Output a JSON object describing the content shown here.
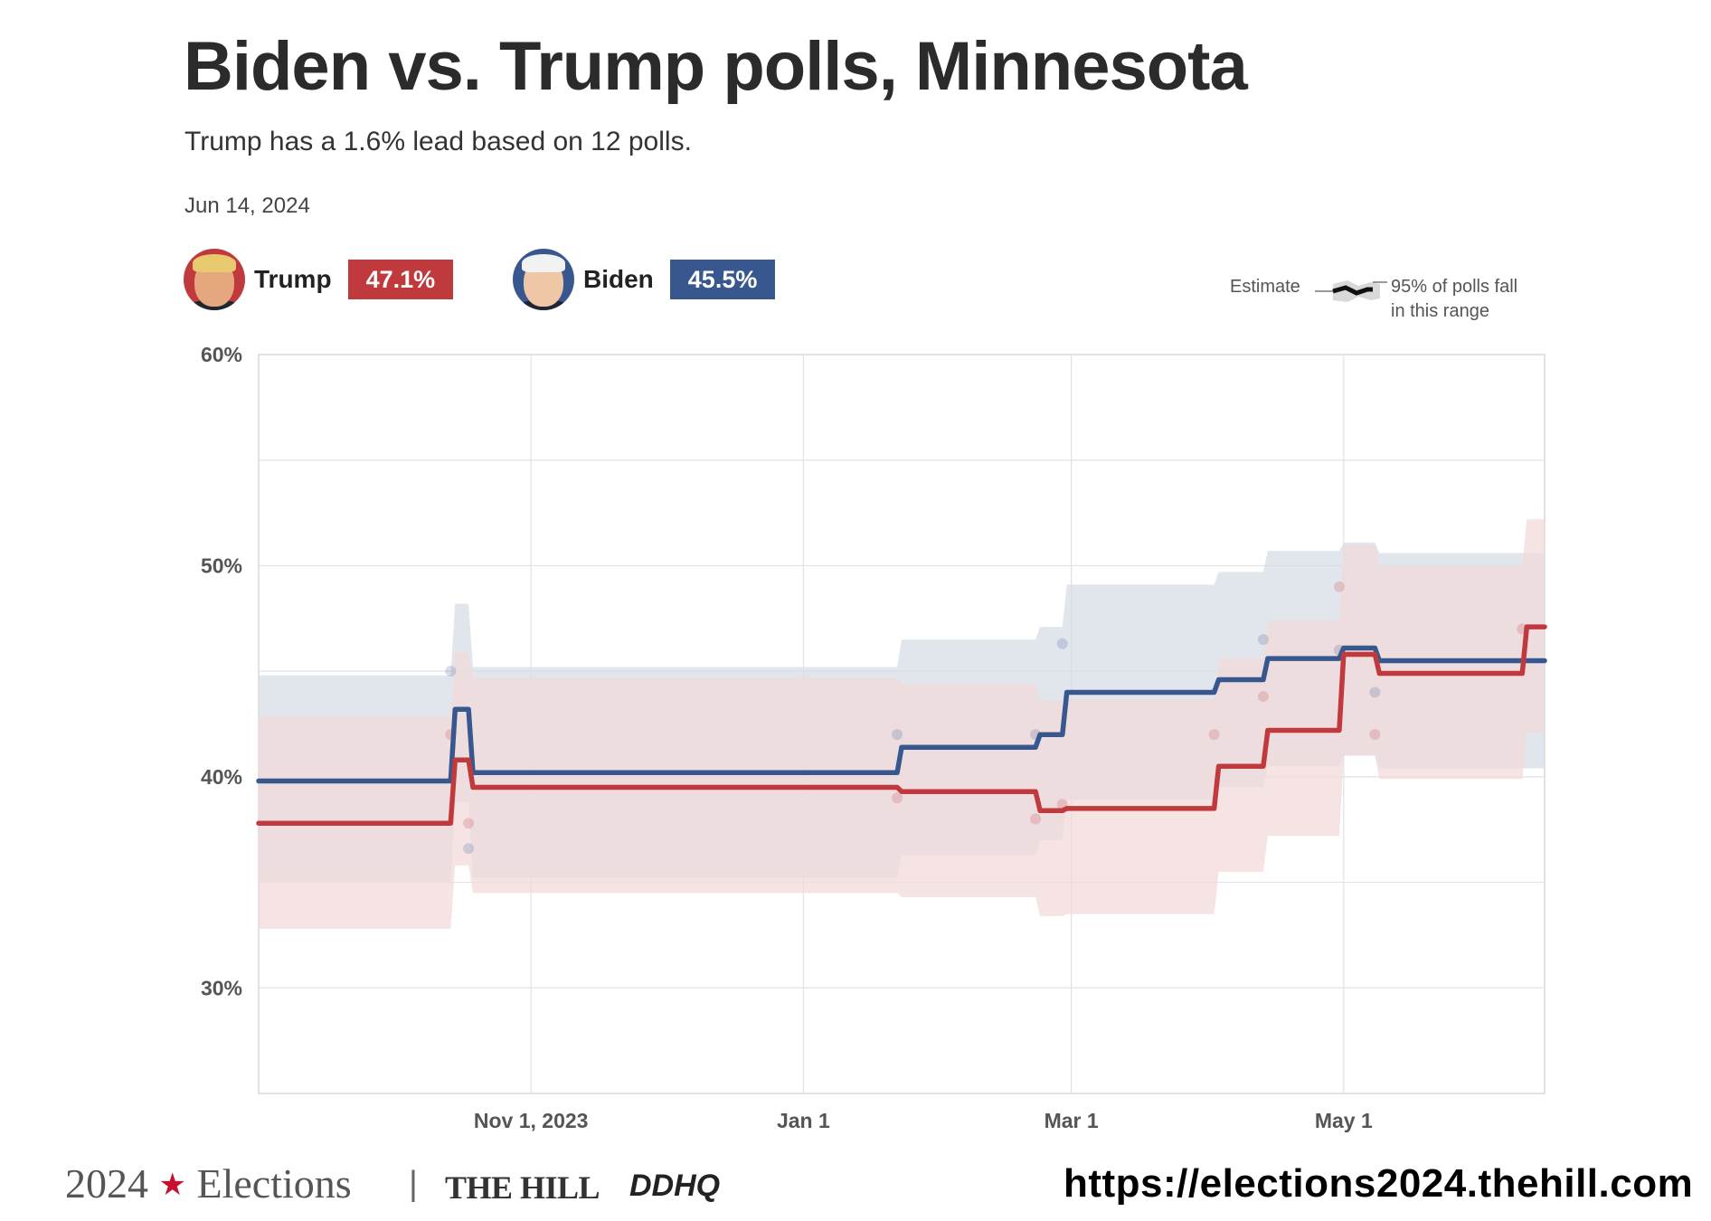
{
  "header": {
    "title": "Biden vs. Trump polls, Minnesota",
    "subtitle": "Trump has a 1.6% lead based on 12 polls.",
    "date": "Jun 14, 2024"
  },
  "candidates": {
    "trump": {
      "name": "Trump",
      "value": "47.1%",
      "color": "#c0393d",
      "avatar_icon": "trump-portrait-icon"
    },
    "biden": {
      "name": "Biden",
      "value": "45.5%",
      "color": "#38578f",
      "avatar_icon": "biden-portrait-icon"
    }
  },
  "legend": {
    "estimate": "Estimate",
    "range_line1": "95% of polls fall",
    "range_line2": "in this range"
  },
  "footer": {
    "brand_year": "2024",
    "brand_word": "Elections",
    "separator": "|",
    "publisher": "THE HILL",
    "partner": "DDHQ",
    "url": "https://elections2024.thehill.com"
  },
  "chart_data": {
    "type": "line",
    "title": "Biden vs. Trump polls, Minnesota",
    "xlabel": "",
    "ylabel": "",
    "ylim": [
      25,
      60
    ],
    "y_ticks": [
      {
        "value": 60,
        "label": "60%"
      },
      {
        "value": 50,
        "label": "50%"
      },
      {
        "value": 40,
        "label": "40%"
      },
      {
        "value": 30,
        "label": "30%"
      }
    ],
    "xlim": [
      "2023-09-01",
      "2024-06-15"
    ],
    "x_ticks": [
      {
        "date": "2023-11-01",
        "label": "Nov 1, 2023"
      },
      {
        "date": "2024-01-01",
        "label": "Jan 1"
      },
      {
        "date": "2024-03-01",
        "label": "Mar 1"
      },
      {
        "date": "2024-05-01",
        "label": "May 1"
      }
    ],
    "grid": true,
    "legend_position": "top-right",
    "series": [
      {
        "name": "Biden",
        "color": "#38578f",
        "band_color": "#d6dce6",
        "estimate": [
          [
            "2023-09-01",
            39.8
          ],
          [
            "2023-10-14",
            39.8
          ],
          [
            "2023-10-15",
            43.2
          ],
          [
            "2023-10-18",
            43.2
          ],
          [
            "2023-10-19",
            40.2
          ],
          [
            "2024-01-22",
            40.2
          ],
          [
            "2024-01-23",
            41.4
          ],
          [
            "2024-02-22",
            41.4
          ],
          [
            "2024-02-23",
            42.0
          ],
          [
            "2024-02-28",
            42.0
          ],
          [
            "2024-02-29",
            44.0
          ],
          [
            "2024-04-02",
            44.0
          ],
          [
            "2024-04-03",
            44.6
          ],
          [
            "2024-04-13",
            44.6
          ],
          [
            "2024-04-14",
            45.6
          ],
          [
            "2024-04-30",
            45.6
          ],
          [
            "2024-05-01",
            46.1
          ],
          [
            "2024-05-08",
            46.1
          ],
          [
            "2024-05-09",
            45.5
          ],
          [
            "2024-06-15",
            45.5
          ]
        ],
        "band": [
          [
            "2023-09-01",
            35.0,
            44.8
          ],
          [
            "2023-10-14",
            35.0,
            44.8
          ],
          [
            "2023-10-15",
            38.8,
            48.2
          ],
          [
            "2023-10-18",
            38.8,
            48.2
          ],
          [
            "2023-10-19",
            35.2,
            45.2
          ],
          [
            "2024-01-22",
            35.2,
            45.2
          ],
          [
            "2024-01-23",
            36.3,
            46.5
          ],
          [
            "2024-02-22",
            36.3,
            46.5
          ],
          [
            "2024-02-23",
            37.0,
            47.1
          ],
          [
            "2024-02-28",
            37.0,
            47.1
          ],
          [
            "2024-02-29",
            38.9,
            49.1
          ],
          [
            "2024-04-02",
            38.9,
            49.1
          ],
          [
            "2024-04-03",
            39.5,
            49.7
          ],
          [
            "2024-04-13",
            39.5,
            49.7
          ],
          [
            "2024-04-14",
            40.5,
            50.7
          ],
          [
            "2024-04-30",
            40.5,
            50.7
          ],
          [
            "2024-05-01",
            41.0,
            51.1
          ],
          [
            "2024-05-08",
            41.0,
            51.1
          ],
          [
            "2024-05-09",
            40.4,
            50.6
          ],
          [
            "2024-06-15",
            40.4,
            50.6
          ]
        ],
        "polls": [
          [
            "2023-10-14",
            45.0
          ],
          [
            "2023-10-18",
            36.6
          ],
          [
            "2024-01-22",
            42.0
          ],
          [
            "2024-02-22",
            42.0
          ],
          [
            "2024-02-28",
            46.3
          ],
          [
            "2024-04-13",
            46.5
          ],
          [
            "2024-04-30",
            46.0
          ],
          [
            "2024-05-08",
            44.0
          ]
        ]
      },
      {
        "name": "Trump",
        "color": "#c0393d",
        "band_color": "#f3d9da",
        "estimate": [
          [
            "2023-09-01",
            37.8
          ],
          [
            "2023-10-14",
            37.8
          ],
          [
            "2023-10-15",
            40.8
          ],
          [
            "2023-10-18",
            40.8
          ],
          [
            "2023-10-19",
            39.5
          ],
          [
            "2024-01-22",
            39.5
          ],
          [
            "2024-01-23",
            39.3
          ],
          [
            "2024-02-22",
            39.3
          ],
          [
            "2024-02-23",
            38.4
          ],
          [
            "2024-02-28",
            38.4
          ],
          [
            "2024-02-29",
            38.5
          ],
          [
            "2024-04-02",
            38.5
          ],
          [
            "2024-04-03",
            40.5
          ],
          [
            "2024-04-13",
            40.5
          ],
          [
            "2024-04-14",
            42.2
          ],
          [
            "2024-04-30",
            42.2
          ],
          [
            "2024-05-01",
            45.8
          ],
          [
            "2024-05-08",
            45.8
          ],
          [
            "2024-05-09",
            44.9
          ],
          [
            "2024-06-10",
            44.9
          ],
          [
            "2024-06-11",
            47.1
          ],
          [
            "2024-06-15",
            47.1
          ]
        ],
        "band": [
          [
            "2023-09-01",
            32.8,
            42.9
          ],
          [
            "2023-10-14",
            32.8,
            42.9
          ],
          [
            "2023-10-15",
            35.8,
            45.9
          ],
          [
            "2023-10-18",
            35.8,
            45.9
          ],
          [
            "2023-10-19",
            34.5,
            44.7
          ],
          [
            "2024-01-22",
            34.5,
            44.7
          ],
          [
            "2024-01-23",
            34.3,
            44.4
          ],
          [
            "2024-02-22",
            34.3,
            44.4
          ],
          [
            "2024-02-23",
            33.4,
            43.6
          ],
          [
            "2024-02-28",
            33.4,
            43.6
          ],
          [
            "2024-02-29",
            33.5,
            43.7
          ],
          [
            "2024-04-02",
            33.5,
            43.7
          ],
          [
            "2024-04-03",
            35.5,
            45.6
          ],
          [
            "2024-04-13",
            35.5,
            45.6
          ],
          [
            "2024-04-14",
            37.2,
            47.4
          ],
          [
            "2024-04-30",
            37.2,
            47.4
          ],
          [
            "2024-05-01",
            41.0,
            51.0
          ],
          [
            "2024-05-08",
            41.0,
            51.0
          ],
          [
            "2024-05-09",
            39.9,
            50.0
          ],
          [
            "2024-06-10",
            39.9,
            50.0
          ],
          [
            "2024-06-11",
            42.1,
            52.2
          ],
          [
            "2024-06-15",
            42.1,
            52.2
          ]
        ],
        "polls": [
          [
            "2023-10-14",
            42.0
          ],
          [
            "2023-10-18",
            37.8
          ],
          [
            "2024-01-22",
            39.0
          ],
          [
            "2024-02-22",
            38.0
          ],
          [
            "2024-02-28",
            38.7
          ],
          [
            "2024-04-02",
            42.0
          ],
          [
            "2024-04-13",
            43.8
          ],
          [
            "2024-04-30",
            49.0
          ],
          [
            "2024-05-08",
            42.0
          ],
          [
            "2024-06-10",
            47.0
          ]
        ]
      }
    ]
  }
}
